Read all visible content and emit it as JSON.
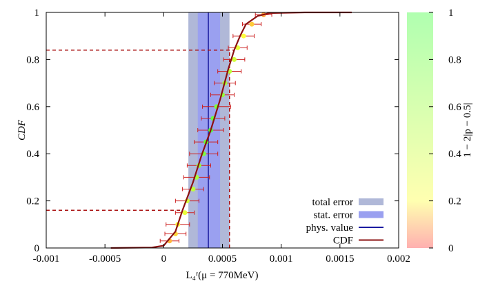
{
  "chart_data": {
    "type": "scatter",
    "x_label": "L₄ʳ(μ = 770MeV)",
    "y_label": "CDF",
    "xlim": [
      -0.001,
      0.002
    ],
    "ylim": [
      0,
      1
    ],
    "xticks": [
      -0.001,
      -0.0005,
      0,
      0.0005,
      0.001,
      0.0015,
      0.002
    ],
    "yticks": [
      0,
      0.2,
      0.4,
      0.6,
      0.8,
      1
    ],
    "bands": [
      {
        "name": "total error",
        "color": "#b0b8d8",
        "x": [
          0.00021,
          0.00056
        ]
      },
      {
        "name": "stat. error",
        "color": "#9aa0f0",
        "x": [
          0.00029,
          0.00048
        ]
      }
    ],
    "phys_value": {
      "name": "phys. value",
      "color": "#1a1aa0",
      "x": 0.00038
    },
    "cdf": {
      "name": "CDF",
      "color": "#8b1010",
      "x": [
        -0.00045,
        -0.0001,
        0,
        0.0001,
        0.00016,
        0.00025,
        0.00032,
        0.0004,
        0.00048,
        0.00055,
        0.0006,
        0.00065,
        0.0007,
        0.0008,
        0.0009,
        0.0012,
        0.0016
      ],
      "y": [
        0,
        0.002,
        0.01,
        0.07,
        0.16,
        0.28,
        0.39,
        0.5,
        0.63,
        0.76,
        0.84,
        0.9,
        0.95,
        0.985,
        0.997,
        1,
        1
      ]
    },
    "dashed": {
      "color": "#aa1010",
      "y_levels": [
        0.16,
        0.84
      ],
      "x_ends": [
        0.00016,
        0.0006
      ],
      "x_vertical": 0.00056
    },
    "points": {
      "color": "#cc2020",
      "x": [
        5e-05,
        0.0001,
        0.00012,
        0.00018,
        0.0002,
        0.00025,
        0.00028,
        0.0003,
        0.00034,
        0.00036,
        0.0004,
        0.00042,
        0.00045,
        0.0005,
        0.00052,
        0.00056,
        0.0006,
        0.00063,
        0.00068,
        0.00075,
        0.00085
      ],
      "y": [
        0.03,
        0.06,
        0.1,
        0.15,
        0.2,
        0.25,
        0.3,
        0.35,
        0.4,
        0.45,
        0.5,
        0.55,
        0.6,
        0.65,
        0.7,
        0.75,
        0.8,
        0.85,
        0.9,
        0.95,
        0.99
      ],
      "xerr": [
        8e-05,
        9e-05,
        0.0001,
        8e-05,
        0.0001,
        9e-05,
        0.00011,
        0.0001,
        0.00012,
        0.0001,
        0.00011,
        0.0001,
        0.00012,
        0.0001,
        9e-05,
        0.0001,
        9e-05,
        8e-05,
        9e-05,
        8e-05,
        7e-05
      ]
    },
    "colorbar": {
      "label": "1 − 2|p − 0.5|",
      "lim": [
        0,
        1
      ],
      "ticks": [
        0,
        0.2,
        0.4,
        0.6,
        0.8,
        1
      ]
    }
  }
}
